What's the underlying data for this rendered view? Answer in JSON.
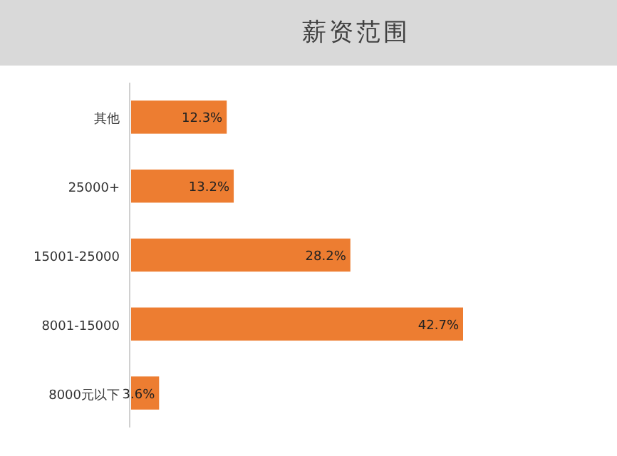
{
  "chart_data": {
    "type": "bar",
    "orientation": "horizontal",
    "title": "薪资范围",
    "categories": [
      "其他",
      "25000+",
      "15001-25000",
      "8001-15000",
      "8000元以下"
    ],
    "values": [
      12.3,
      13.2,
      28.2,
      42.7,
      3.6
    ],
    "value_labels": [
      "12.3%",
      "13.2%",
      "28.2%",
      "42.7%",
      "3.6%"
    ],
    "color": "#ed7d31"
  }
}
